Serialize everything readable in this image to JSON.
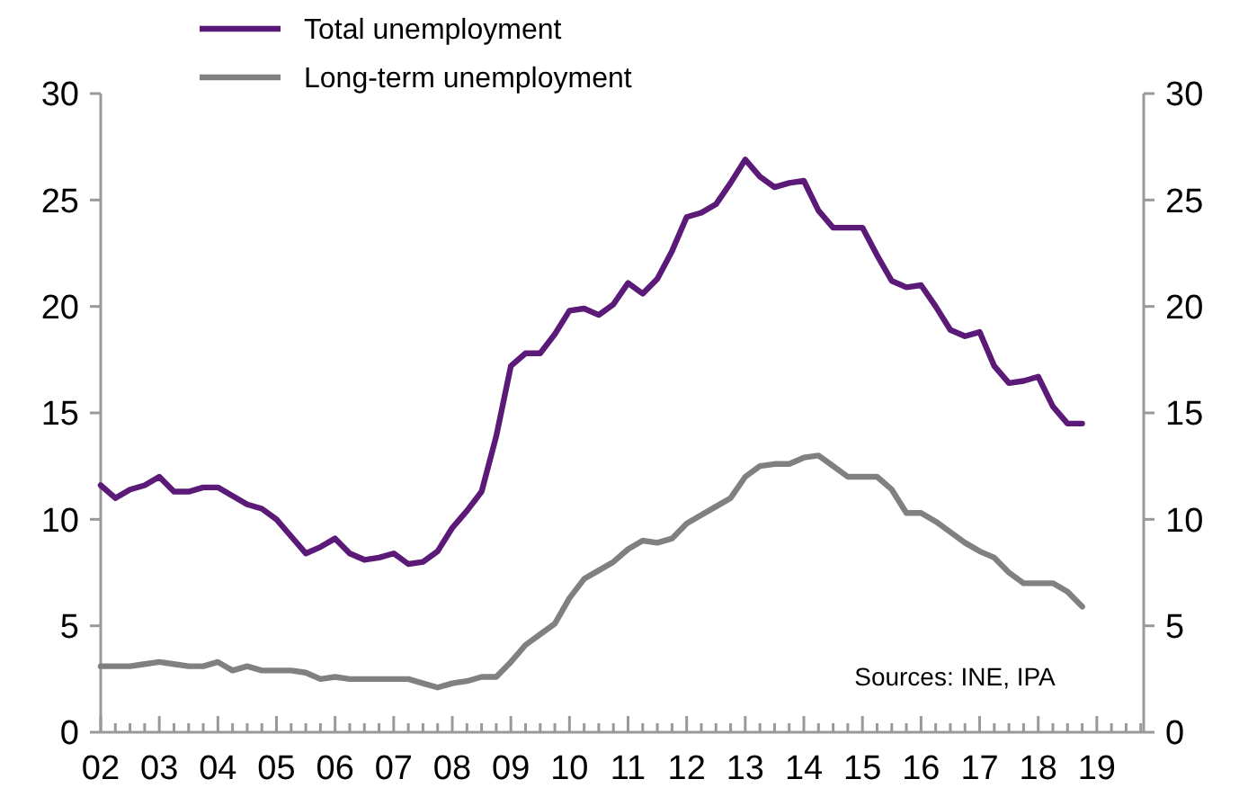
{
  "chart_data": {
    "type": "line",
    "legend": "top left",
    "grid": false,
    "x": [
      2002,
      2002.25,
      2002.5,
      2002.75,
      2003,
      2003.25,
      2003.5,
      2003.75,
      2004,
      2004.25,
      2004.5,
      2004.75,
      2005,
      2005.25,
      2005.5,
      2005.75,
      2006,
      2006.25,
      2006.5,
      2006.75,
      2007,
      2007.25,
      2007.5,
      2007.75,
      2008,
      2008.25,
      2008.5,
      2008.75,
      2009,
      2009.25,
      2009.5,
      2009.75,
      2010,
      2010.25,
      2010.5,
      2010.75,
      2011,
      2011.25,
      2011.5,
      2011.75,
      2012,
      2012.25,
      2012.5,
      2012.75,
      2013,
      2013.25,
      2013.5,
      2013.75,
      2014,
      2014.25,
      2014.5,
      2014.75,
      2015,
      2015.25,
      2015.5,
      2015.75,
      2016,
      2016.25,
      2016.5,
      2016.75,
      2017,
      2017.25,
      2017.5,
      2017.75,
      2018,
      2018.25,
      2018.5,
      2018.75
    ],
    "series": [
      {
        "name": "Total unemployment",
        "color": "#5b1a78",
        "values": [
          11.6,
          11.0,
          11.4,
          11.6,
          12.0,
          11.3,
          11.3,
          11.5,
          11.5,
          11.1,
          10.7,
          10.5,
          10.0,
          9.2,
          8.4,
          8.7,
          9.1,
          8.4,
          8.1,
          8.2,
          8.4,
          7.9,
          8.0,
          8.5,
          9.6,
          10.4,
          11.3,
          13.9,
          17.2,
          17.8,
          17.8,
          18.7,
          19.8,
          19.9,
          19.6,
          20.1,
          21.1,
          20.6,
          21.3,
          22.6,
          24.2,
          24.4,
          24.8,
          25.8,
          26.9,
          26.1,
          25.6,
          25.8,
          25.9,
          24.5,
          23.7,
          23.7,
          23.7,
          22.4,
          21.2,
          20.9,
          21.0,
          20.0,
          18.9,
          18.6,
          18.8,
          17.2,
          16.4,
          16.5,
          16.7,
          15.3,
          14.5,
          14.5
        ]
      },
      {
        "name": "Long-term unemployment",
        "color": "#808080",
        "values": [
          3.1,
          3.1,
          3.1,
          3.2,
          3.3,
          3.2,
          3.1,
          3.1,
          3.3,
          2.9,
          3.1,
          2.9,
          2.9,
          2.9,
          2.8,
          2.5,
          2.6,
          2.5,
          2.5,
          2.5,
          2.5,
          2.5,
          2.3,
          2.1,
          2.3,
          2.4,
          2.6,
          2.6,
          3.3,
          4.1,
          4.6,
          5.1,
          6.3,
          7.2,
          7.6,
          8.0,
          8.6,
          9.0,
          8.9,
          9.1,
          9.8,
          10.2,
          10.6,
          11.0,
          12.0,
          12.5,
          12.6,
          12.6,
          12.9,
          13.0,
          12.5,
          12.0,
          12.0,
          12.0,
          11.4,
          10.3,
          10.3,
          9.9,
          9.4,
          8.9,
          8.5,
          8.2,
          7.5,
          7.0,
          7.0,
          7.0,
          6.6,
          5.9
        ]
      }
    ],
    "xlim": [
      2002,
      2019.8
    ],
    "xticks": [
      {
        "value": 2002,
        "label": "02"
      },
      {
        "value": 2002.25,
        "label": null
      },
      {
        "value": 2002.5,
        "label": null
      },
      {
        "value": 2002.75,
        "label": null
      },
      {
        "value": 2003,
        "label": "03"
      },
      {
        "value": 2003.25,
        "label": null
      },
      {
        "value": 2003.5,
        "label": null
      },
      {
        "value": 2003.75,
        "label": null
      },
      {
        "value": 2004,
        "label": "04"
      },
      {
        "value": 2004.25,
        "label": null
      },
      {
        "value": 2004.5,
        "label": null
      },
      {
        "value": 2004.75,
        "label": null
      },
      {
        "value": 2005,
        "label": "05"
      },
      {
        "value": 2005.25,
        "label": null
      },
      {
        "value": 2005.5,
        "label": null
      },
      {
        "value": 2005.75,
        "label": null
      },
      {
        "value": 2006,
        "label": "06"
      },
      {
        "value": 2006.25,
        "label": null
      },
      {
        "value": 2006.5,
        "label": null
      },
      {
        "value": 2006.75,
        "label": null
      },
      {
        "value": 2007,
        "label": "07"
      },
      {
        "value": 2007.25,
        "label": null
      },
      {
        "value": 2007.5,
        "label": null
      },
      {
        "value": 2007.75,
        "label": null
      },
      {
        "value": 2008,
        "label": "08"
      },
      {
        "value": 2008.25,
        "label": null
      },
      {
        "value": 2008.5,
        "label": null
      },
      {
        "value": 2008.75,
        "label": null
      },
      {
        "value": 2009,
        "label": "09"
      },
      {
        "value": 2009.25,
        "label": null
      },
      {
        "value": 2009.5,
        "label": null
      },
      {
        "value": 2009.75,
        "label": null
      },
      {
        "value": 2010,
        "label": "10"
      },
      {
        "value": 2010.25,
        "label": null
      },
      {
        "value": 2010.5,
        "label": null
      },
      {
        "value": 2010.75,
        "label": null
      },
      {
        "value": 2011,
        "label": "11"
      },
      {
        "value": 2011.25,
        "label": null
      },
      {
        "value": 2011.5,
        "label": null
      },
      {
        "value": 2011.75,
        "label": null
      },
      {
        "value": 2012,
        "label": "12"
      },
      {
        "value": 2012.25,
        "label": null
      },
      {
        "value": 2012.5,
        "label": null
      },
      {
        "value": 2012.75,
        "label": null
      },
      {
        "value": 2013,
        "label": "13"
      },
      {
        "value": 2013.25,
        "label": null
      },
      {
        "value": 2013.5,
        "label": null
      },
      {
        "value": 2013.75,
        "label": null
      },
      {
        "value": 2014,
        "label": "14"
      },
      {
        "value": 2014.25,
        "label": null
      },
      {
        "value": 2014.5,
        "label": null
      },
      {
        "value": 2014.75,
        "label": null
      },
      {
        "value": 2015,
        "label": "15"
      },
      {
        "value": 2015.25,
        "label": null
      },
      {
        "value": 2015.5,
        "label": null
      },
      {
        "value": 2015.75,
        "label": null
      },
      {
        "value": 2016,
        "label": "16"
      },
      {
        "value": 2016.25,
        "label": null
      },
      {
        "value": 2016.5,
        "label": null
      },
      {
        "value": 2016.75,
        "label": null
      },
      {
        "value": 2017,
        "label": "17"
      },
      {
        "value": 2017.25,
        "label": null
      },
      {
        "value": 2017.5,
        "label": null
      },
      {
        "value": 2017.75,
        "label": null
      },
      {
        "value": 2018,
        "label": "18"
      },
      {
        "value": 2018.25,
        "label": null
      },
      {
        "value": 2018.5,
        "label": null
      },
      {
        "value": 2018.75,
        "label": null
      },
      {
        "value": 2019,
        "label": "19"
      },
      {
        "value": 2019.25,
        "label": null
      },
      {
        "value": 2019.5,
        "label": null
      },
      {
        "value": 2019.75,
        "label": null
      }
    ],
    "ylim": [
      0,
      30
    ],
    "yticks": [
      0,
      5,
      10,
      15,
      20,
      25,
      30
    ],
    "y2lim": [
      0,
      30
    ],
    "y2ticks": [
      0,
      5,
      10,
      15,
      20,
      25,
      30
    ],
    "annotations": [
      "Sources: INE, IPA"
    ]
  }
}
